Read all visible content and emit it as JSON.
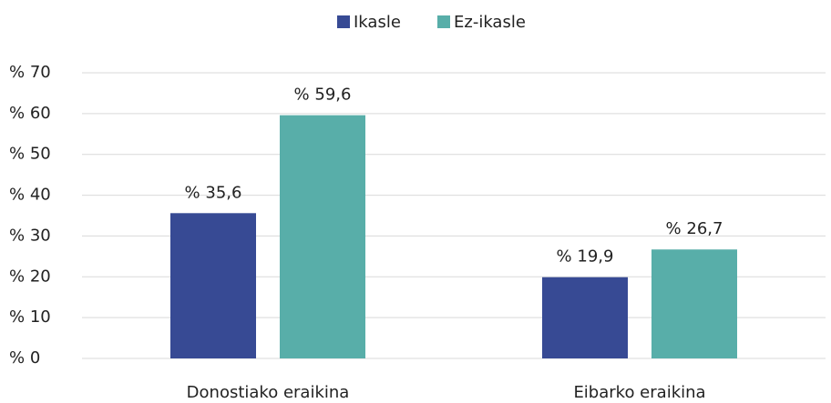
{
  "chart_data": {
    "type": "bar",
    "categories": [
      "Donostiako eraikina",
      "Eibarko eraikina"
    ],
    "series": [
      {
        "name": "Ikasle",
        "color": "#374a94",
        "values": [
          35.6,
          19.9
        ],
        "value_labels": [
          "% 35,6",
          "% 19,9"
        ]
      },
      {
        "name": "Ez-ikasle",
        "color": "#58aea9",
        "values": [
          59.6,
          26.7
        ],
        "value_labels": [
          "% 59,6",
          "% 26,7"
        ]
      }
    ],
    "ylim": [
      0,
      70
    ],
    "yticks": [
      {
        "value": 0,
        "label": "% 0"
      },
      {
        "value": 10,
        "label": "% 10"
      },
      {
        "value": 20,
        "label": "% 20"
      },
      {
        "value": 30,
        "label": "% 30"
      },
      {
        "value": 40,
        "label": "% 40"
      },
      {
        "value": 50,
        "label": "% 50"
      },
      {
        "value": 60,
        "label": "% 60"
      },
      {
        "value": 70,
        "label": "% 70"
      }
    ],
    "grid": true,
    "legend": "top"
  }
}
